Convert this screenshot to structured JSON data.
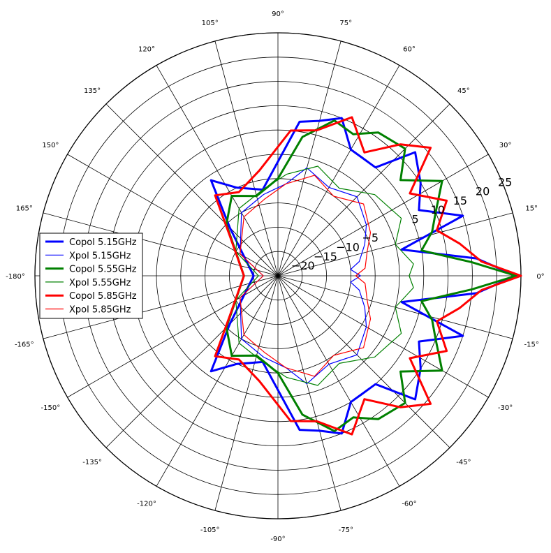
{
  "chart_data": {
    "type": "polar-line",
    "title": "",
    "angle_labels": [
      "90°",
      "105°",
      "120°",
      "135°",
      "150°",
      "165°",
      "-180°",
      "-165°",
      "-150°",
      "-135°",
      "-120°",
      "-105°",
      "-90°",
      "-75°",
      "-60°",
      "-45°",
      "-30°",
      "-15°",
      "0°",
      "15°",
      "30°",
      "45°",
      "60°",
      "75°"
    ],
    "radial_labels": [
      "−20",
      "−15",
      "−10",
      "−5",
      "5",
      "10",
      "15",
      "20",
      "25"
    ],
    "radial_ticks": [
      -20,
      -15,
      -10,
      -5,
      0,
      5,
      10,
      15,
      20,
      25
    ],
    "rlim": [
      -25,
      25
    ],
    "grid": true,
    "legend_position": "left",
    "series": [
      {
        "name": "Copol 5.15GHz",
        "color": "#0000ff",
        "style": "thick",
        "points": [
          [
            -180,
            -20
          ],
          [
            -135,
            -11
          ],
          [
            -125,
            -1
          ],
          [
            -115,
            -5
          ],
          [
            -100,
            -7
          ],
          [
            -82,
            7
          ],
          [
            -75,
            8
          ],
          [
            -68,
            10
          ],
          [
            -60,
            5
          ],
          [
            -48,
            5
          ],
          [
            -42,
            13
          ],
          [
            -33,
            10
          ],
          [
            -25,
            7
          ],
          [
            -18,
            15
          ],
          [
            -12,
            1
          ],
          [
            -5,
            16
          ],
          [
            0,
            24
          ],
          [
            5,
            16
          ],
          [
            12,
            1
          ],
          [
            18,
            15
          ],
          [
            25,
            7
          ],
          [
            33,
            10
          ],
          [
            42,
            13
          ],
          [
            48,
            5
          ],
          [
            60,
            5
          ],
          [
            68,
            10
          ],
          [
            75,
            8
          ],
          [
            82,
            7
          ],
          [
            100,
            -7
          ],
          [
            115,
            -5
          ],
          [
            125,
            -1
          ],
          [
            135,
            -11
          ],
          [
            180,
            -20
          ]
        ]
      },
      {
        "name": "Xpol 5.15GHz",
        "color": "#0000ff",
        "style": "thin",
        "points": [
          [
            -180,
            -22
          ],
          [
            -150,
            -16
          ],
          [
            -120,
            -10
          ],
          [
            -100,
            -8
          ],
          [
            -85,
            -6
          ],
          [
            -75,
            -2
          ],
          [
            -60,
            -4
          ],
          [
            -45,
            -2
          ],
          [
            -30,
            -4
          ],
          [
            -20,
            -6
          ],
          [
            -10,
            -8
          ],
          [
            -5,
            -10
          ],
          [
            0,
            -8
          ],
          [
            5,
            -10
          ],
          [
            10,
            -8
          ],
          [
            20,
            -6
          ],
          [
            30,
            -4
          ],
          [
            45,
            -2
          ],
          [
            60,
            -4
          ],
          [
            75,
            -2
          ],
          [
            85,
            -6
          ],
          [
            100,
            -8
          ],
          [
            120,
            -10
          ],
          [
            150,
            -16
          ],
          [
            180,
            -22
          ]
        ]
      },
      {
        "name": "Copol 5.55GHz",
        "color": "#008000",
        "style": "thick",
        "points": [
          [
            -180,
            -18
          ],
          [
            -135,
            -10
          ],
          [
            -120,
            -6
          ],
          [
            -105,
            -8
          ],
          [
            -90,
            -5
          ],
          [
            -80,
            4
          ],
          [
            -70,
            9
          ],
          [
            -62,
            8
          ],
          [
            -55,
            11
          ],
          [
            -45,
            12
          ],
          [
            -38,
            7
          ],
          [
            -30,
            14
          ],
          [
            -22,
            10
          ],
          [
            -16,
            8
          ],
          [
            -10,
            5
          ],
          [
            -4,
            15
          ],
          [
            0,
            24
          ],
          [
            4,
            15
          ],
          [
            10,
            5
          ],
          [
            16,
            8
          ],
          [
            22,
            10
          ],
          [
            30,
            14
          ],
          [
            38,
            7
          ],
          [
            45,
            12
          ],
          [
            55,
            11
          ],
          [
            62,
            8
          ],
          [
            70,
            9
          ],
          [
            80,
            4
          ],
          [
            90,
            -5
          ],
          [
            105,
            -8
          ],
          [
            120,
            -6
          ],
          [
            135,
            -10
          ],
          [
            180,
            -18
          ]
        ]
      },
      {
        "name": "Xpol 5.55GHz",
        "color": "#008000",
        "style": "thin",
        "points": [
          [
            -180,
            -21
          ],
          [
            -150,
            -15
          ],
          [
            -120,
            -9
          ],
          [
            -100,
            -7
          ],
          [
            -85,
            -4
          ],
          [
            -70,
            -1
          ],
          [
            -55,
            -3
          ],
          [
            -40,
            1
          ],
          [
            -25,
            3
          ],
          [
            -15,
            0
          ],
          [
            -5,
            3
          ],
          [
            0,
            2
          ],
          [
            5,
            3
          ],
          [
            15,
            0
          ],
          [
            25,
            3
          ],
          [
            40,
            1
          ],
          [
            55,
            -3
          ],
          [
            70,
            -1
          ],
          [
            85,
            -4
          ],
          [
            100,
            -7
          ],
          [
            120,
            -9
          ],
          [
            150,
            -15
          ],
          [
            180,
            -21
          ]
        ]
      },
      {
        "name": "Copol 5.85GHz",
        "color": "#ff0000",
        "style": "thick",
        "points": [
          [
            -180,
            -18
          ],
          [
            -140,
            -12
          ],
          [
            -128,
            -4
          ],
          [
            -115,
            -6
          ],
          [
            -100,
            -3
          ],
          [
            -85,
            5
          ],
          [
            -75,
            6
          ],
          [
            -65,
            11
          ],
          [
            -55,
            6
          ],
          [
            -47,
            12
          ],
          [
            -40,
            16
          ],
          [
            -32,
            7
          ],
          [
            -24,
            13
          ],
          [
            -16,
            9
          ],
          [
            -10,
            13
          ],
          [
            -4,
            17
          ],
          [
            0,
            25
          ],
          [
            4,
            17
          ],
          [
            10,
            13
          ],
          [
            16,
            9
          ],
          [
            24,
            13
          ],
          [
            32,
            7
          ],
          [
            40,
            16
          ],
          [
            47,
            12
          ],
          [
            55,
            6
          ],
          [
            65,
            11
          ],
          [
            75,
            6
          ],
          [
            85,
            5
          ],
          [
            100,
            -3
          ],
          [
            115,
            -6
          ],
          [
            128,
            -4
          ],
          [
            140,
            -12
          ],
          [
            180,
            -18
          ]
        ]
      },
      {
        "name": "Xpol 5.85GHz",
        "color": "#ff0000",
        "style": "thin",
        "points": [
          [
            -180,
            -22
          ],
          [
            -150,
            -16
          ],
          [
            -120,
            -11
          ],
          [
            -100,
            -9
          ],
          [
            -85,
            -6
          ],
          [
            -70,
            -3
          ],
          [
            -55,
            -5
          ],
          [
            -40,
            -2
          ],
          [
            -25,
            -4
          ],
          [
            -15,
            -6
          ],
          [
            -5,
            -7
          ],
          [
            0,
            -9
          ],
          [
            5,
            -7
          ],
          [
            15,
            -6
          ],
          [
            25,
            -4
          ],
          [
            40,
            -2
          ],
          [
            55,
            -5
          ],
          [
            70,
            -3
          ],
          [
            85,
            -6
          ],
          [
            100,
            -9
          ],
          [
            120,
            -11
          ],
          [
            150,
            -16
          ],
          [
            180,
            -22
          ]
        ]
      }
    ]
  }
}
